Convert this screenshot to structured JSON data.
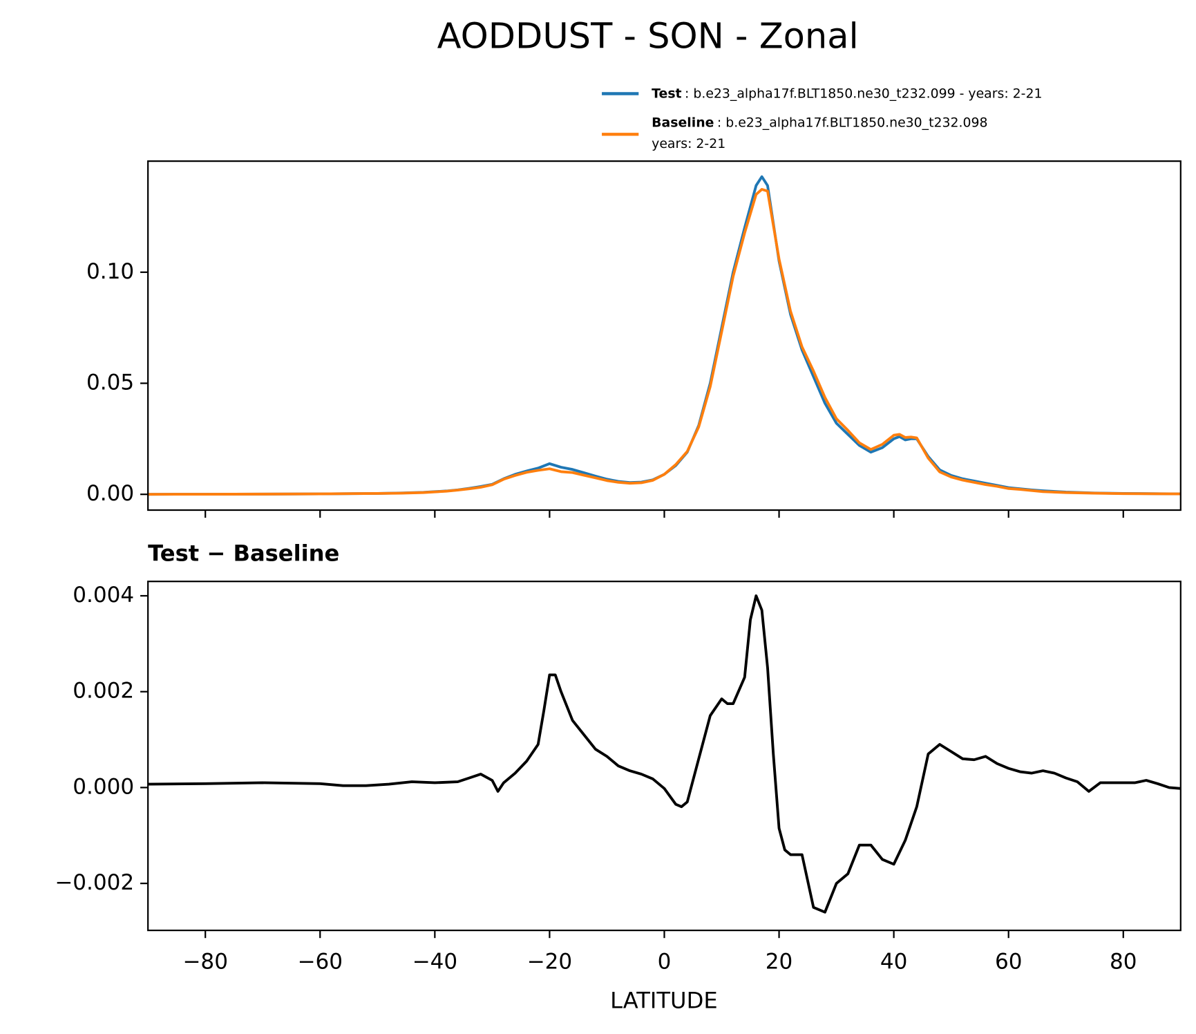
{
  "chart_data": [
    {
      "type": "line",
      "title": "AODDUST - SON - Zonal",
      "x": [
        -90,
        -80,
        -70,
        -60,
        -50,
        -46,
        -42,
        -40,
        -38,
        -36,
        -34,
        -32,
        -30,
        -28,
        -26,
        -24,
        -22,
        -20,
        -18,
        -16,
        -14,
        -12,
        -10,
        -8,
        -6,
        -4,
        -2,
        0,
        2,
        4,
        6,
        8,
        10,
        12,
        14,
        16,
        17,
        18,
        20,
        22,
        24,
        26,
        28,
        30,
        32,
        34,
        36,
        38,
        40,
        41,
        42,
        43,
        44,
        46,
        48,
        50,
        52,
        54,
        56,
        58,
        60,
        62,
        64,
        66,
        70,
        75,
        80,
        90
      ],
      "series": [
        {
          "name": "Test",
          "label_lines": [
            ": b.e23_alpha17f.BLT1850.ne30_t232.099 - years: 2-21"
          ],
          "color": "#1f77b4",
          "values": [
            0,
            5e-05,
            0.0001,
            0.0002,
            0.0004,
            0.0006,
            0.0009,
            0.0012,
            0.0015,
            0.002,
            0.0027,
            0.0035,
            0.0045,
            0.007,
            0.009,
            0.0105,
            0.0118,
            0.0138,
            0.0122,
            0.0112,
            0.0097,
            0.0082,
            0.0068,
            0.0058,
            0.0053,
            0.0055,
            0.0065,
            0.009,
            0.013,
            0.019,
            0.031,
            0.05,
            0.075,
            0.1,
            0.12,
            0.139,
            0.143,
            0.139,
            0.105,
            0.081,
            0.065,
            0.053,
            0.041,
            0.032,
            0.027,
            0.022,
            0.019,
            0.021,
            0.025,
            0.026,
            0.0245,
            0.025,
            0.025,
            0.017,
            0.011,
            0.0085,
            0.007,
            0.006,
            0.005,
            0.004,
            0.003,
            0.0025,
            0.002,
            0.0016,
            0.001,
            0.0006,
            0.0004,
            0.0002
          ]
        },
        {
          "name": "Baseline",
          "label_lines": [
            ": b.e23_alpha17f.BLT1850.ne30_t232.098",
            "years: 2-21"
          ],
          "color": "#ff7f0e",
          "values": [
            0,
            5e-05,
            0.0001,
            0.0002,
            0.0004,
            0.0005,
            0.0008,
            0.0011,
            0.0014,
            0.0019,
            0.0025,
            0.0032,
            0.0043,
            0.0068,
            0.0085,
            0.0099,
            0.0108,
            0.0115,
            0.0102,
            0.0098,
            0.0086,
            0.0074,
            0.0062,
            0.0054,
            0.005,
            0.0052,
            0.0063,
            0.009,
            0.0134,
            0.0193,
            0.0304,
            0.0485,
            0.0732,
            0.0982,
            0.1177,
            0.135,
            0.1373,
            0.1365,
            0.1059,
            0.0824,
            0.0664,
            0.0555,
            0.0436,
            0.034,
            0.0288,
            0.0232,
            0.0202,
            0.0225,
            0.0266,
            0.027,
            0.0256,
            0.0258,
            0.0254,
            0.0163,
            0.0101,
            0.0078,
            0.0064,
            0.0054,
            0.0044,
            0.0036,
            0.0026,
            0.0022,
            0.0017,
            0.0012,
            0.0008,
            0.0005,
            0.0003,
            0.0002
          ]
        }
      ],
      "xlim": [
        -90,
        90
      ],
      "xticks": [
        -80,
        -60,
        -40,
        -20,
        0,
        20,
        40,
        60,
        80
      ],
      "xticklabels": false,
      "ylim": [
        -0.0071,
        0.15
      ],
      "yticks": [
        {
          "value": 0,
          "label": "0.00"
        },
        {
          "value": 0.05,
          "label": "0.05"
        },
        {
          "value": 0.1,
          "label": "0.10"
        }
      ]
    },
    {
      "type": "line",
      "subtitle": "Test − Baseline",
      "xlabel": "LATITUDE",
      "x": [
        -90,
        -80,
        -70,
        -60,
        -56,
        -52,
        -48,
        -44,
        -40,
        -36,
        -34,
        -32,
        -30,
        -29,
        -28,
        -26,
        -24,
        -22,
        -21,
        -20,
        -19,
        -18,
        -16,
        -14,
        -12,
        -10,
        -8,
        -6,
        -4,
        -2,
        0,
        2,
        3,
        4,
        6,
        8,
        10,
        11,
        12,
        14,
        15,
        16,
        17,
        18,
        19,
        20,
        21,
        22,
        24,
        26,
        28,
        30,
        32,
        34,
        36,
        38,
        40,
        42,
        44,
        46,
        48,
        50,
        52,
        54,
        56,
        58,
        60,
        62,
        64,
        66,
        68,
        70,
        72,
        74,
        76,
        78,
        80,
        82,
        84,
        86,
        88,
        90
      ],
      "series": [
        {
          "color": "#000000",
          "values": [
            7e-05,
            8e-05,
            0.0001,
            8e-05,
            4e-05,
            4e-05,
            7e-05,
            0.00012,
            0.0001,
            0.00012,
            0.0002,
            0.00028,
            0.00015,
            -8e-05,
            0.0001,
            0.0003,
            0.00055,
            0.0009,
            0.0016,
            0.00235,
            0.00235,
            0.002,
            0.0014,
            0.0011,
            0.0008,
            0.00065,
            0.00045,
            0.00035,
            0.00028,
            0.00018,
            -2e-05,
            -0.00035,
            -0.0004,
            -0.0003,
            0.0006,
            0.0015,
            0.00185,
            0.00175,
            0.00175,
            0.0023,
            0.0035,
            0.004,
            0.0037,
            0.0025,
            0.0007,
            -0.00085,
            -0.0013,
            -0.0014,
            -0.0014,
            -0.0025,
            -0.0026,
            -0.002,
            -0.0018,
            -0.0012,
            -0.0012,
            -0.0015,
            -0.0016,
            -0.0011,
            -0.0004,
            0.0007,
            0.0009,
            0.00075,
            0.0006,
            0.00058,
            0.00065,
            0.0005,
            0.0004,
            0.00033,
            0.0003,
            0.00035,
            0.0003,
            0.0002,
            0.00012,
            -8e-05,
            0.0001,
            0.0001,
            0.0001,
            0.0001,
            0.00015,
            8e-05,
            0,
            -2e-05
          ]
        }
      ],
      "xlim": [
        -90,
        90
      ],
      "xticks": [
        {
          "value": -80,
          "label": "−80"
        },
        {
          "value": -60,
          "label": "−60"
        },
        {
          "value": -40,
          "label": "−40"
        },
        {
          "value": -20,
          "label": "−20"
        },
        0,
        20,
        40,
        60,
        80
      ],
      "xticklabels": true,
      "ylim": [
        -0.00298,
        0.0043
      ],
      "yticks": [
        {
          "value": -0.002,
          "label": "−0.002"
        },
        {
          "value": 0,
          "label": "0.000"
        },
        {
          "value": 0.002,
          "label": "0.002"
        },
        {
          "value": 0.004,
          "label": "0.004"
        }
      ]
    }
  ]
}
